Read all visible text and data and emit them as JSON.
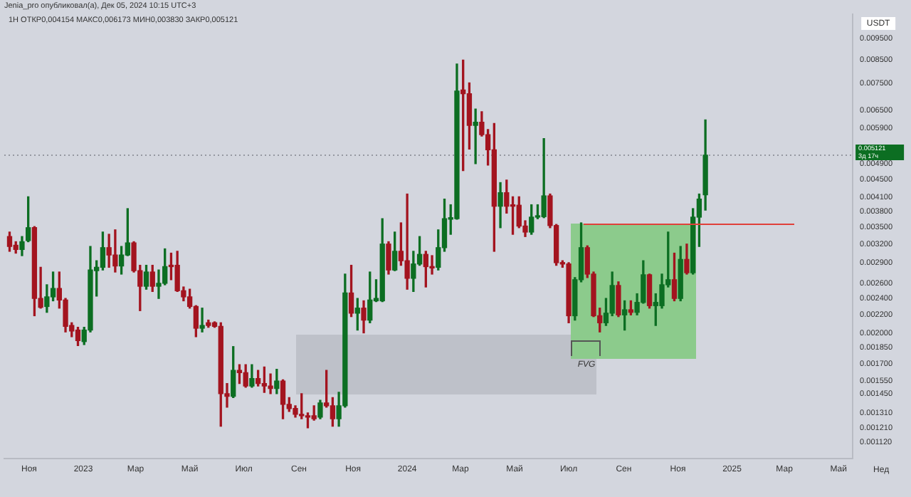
{
  "chart_data": {
    "type": "candlestick",
    "title": "Jenia_pro опубликовал(а), Дек 05, 2024 10:15 UTC+3",
    "subtitle": "1Н ОТКР0,004154 МАКС0,006173 МИН0,003830 ЗАКР0,005121",
    "ylabel": "USDT",
    "x": [
      "2022-10-10",
      "2022-10-17",
      "2022-10-24",
      "2022-10-31",
      "2022-11-07",
      "2022-11-14",
      "2022-11-21",
      "2022-11-28",
      "2022-12-05",
      "2022-12-12",
      "2022-12-19",
      "2022-12-26",
      "2023-01-02",
      "2023-01-09",
      "2023-01-16",
      "2023-01-23",
      "2023-01-30",
      "2023-02-06",
      "2023-02-13",
      "2023-02-20",
      "2023-02-27",
      "2023-03-06",
      "2023-03-13",
      "2023-03-20",
      "2023-03-27",
      "2023-04-03",
      "2023-04-10",
      "2023-04-17",
      "2023-04-24",
      "2023-05-01",
      "2023-05-08",
      "2023-05-15",
      "2023-05-22",
      "2023-05-29",
      "2023-06-05",
      "2023-06-12",
      "2023-06-19",
      "2023-06-26",
      "2023-07-03",
      "2023-07-10",
      "2023-07-17",
      "2023-07-24",
      "2023-07-31",
      "2023-08-07",
      "2023-08-14",
      "2023-08-21",
      "2023-08-28",
      "2023-09-04",
      "2023-09-11",
      "2023-09-18",
      "2023-09-25",
      "2023-10-02",
      "2023-10-09",
      "2023-10-16",
      "2023-10-23",
      "2023-10-30",
      "2023-11-06",
      "2023-11-13",
      "2023-11-20",
      "2023-11-27",
      "2023-12-04",
      "2023-12-11",
      "2023-12-18",
      "2023-12-25",
      "2024-01-01",
      "2024-01-08",
      "2024-01-15",
      "2024-01-22",
      "2024-01-29",
      "2024-02-05",
      "2024-02-12",
      "2024-02-19",
      "2024-02-26",
      "2024-03-04",
      "2024-03-11",
      "2024-03-18",
      "2024-03-25",
      "2024-04-01",
      "2024-04-08",
      "2024-04-15",
      "2024-04-22",
      "2024-04-29",
      "2024-05-06",
      "2024-05-13",
      "2024-05-20",
      "2024-05-27",
      "2024-06-03",
      "2024-06-10",
      "2024-06-17",
      "2024-06-24",
      "2024-07-01",
      "2024-07-08",
      "2024-07-15",
      "2024-07-22",
      "2024-07-29",
      "2024-08-05",
      "2024-08-12",
      "2024-08-19",
      "2024-08-26",
      "2024-09-02",
      "2024-09-09",
      "2024-09-16",
      "2024-09-23",
      "2024-09-30",
      "2024-10-07",
      "2024-10-14",
      "2024-10-21",
      "2024-10-28",
      "2024-11-04",
      "2024-11-11",
      "2024-11-18",
      "2024-11-25",
      "2024-12-02"
    ],
    "ohlc": [
      [
        0.00333,
        0.00341,
        0.00308,
        0.00316
      ],
      [
        0.00318,
        0.00324,
        0.00305,
        0.00311
      ],
      [
        0.00311,
        0.00333,
        0.00301,
        0.00324
      ],
      [
        0.00326,
        0.00411,
        0.00324,
        0.00349
      ],
      [
        0.00349,
        0.00351,
        0.00219,
        0.0024
      ],
      [
        0.0024,
        0.00283,
        0.00228,
        0.00229
      ],
      [
        0.0023,
        0.00258,
        0.00223,
        0.00242
      ],
      [
        0.00242,
        0.00276,
        0.00237,
        0.00253
      ],
      [
        0.00253,
        0.00276,
        0.00228,
        0.00238
      ],
      [
        0.00238,
        0.0024,
        0.00201,
        0.00207
      ],
      [
        0.00208,
        0.00211,
        0.00196,
        0.00202
      ],
      [
        0.00203,
        0.00206,
        0.00187,
        0.00192
      ],
      [
        0.00191,
        0.00206,
        0.00188,
        0.00203
      ],
      [
        0.00203,
        0.00316,
        0.00201,
        0.00279
      ],
      [
        0.00278,
        0.00293,
        0.00243,
        0.00283
      ],
      [
        0.00283,
        0.00341,
        0.00279,
        0.00314
      ],
      [
        0.00314,
        0.00337,
        0.00283,
        0.00302
      ],
      [
        0.00302,
        0.00345,
        0.00276,
        0.00285
      ],
      [
        0.00285,
        0.00316,
        0.00273,
        0.00302
      ],
      [
        0.00302,
        0.00386,
        0.00301,
        0.00322
      ],
      [
        0.00322,
        0.00324,
        0.00276,
        0.00278
      ],
      [
        0.00278,
        0.00286,
        0.00225,
        0.00256
      ],
      [
        0.00256,
        0.00286,
        0.00252,
        0.00276
      ],
      [
        0.00276,
        0.00286,
        0.00249,
        0.00256
      ],
      [
        0.00256,
        0.00279,
        0.0024,
        0.0026
      ],
      [
        0.0026,
        0.00312,
        0.00258,
        0.00284
      ],
      [
        0.00286,
        0.00305,
        0.00265,
        0.00284
      ],
      [
        0.00286,
        0.00308,
        0.00249,
        0.0025
      ],
      [
        0.0025,
        0.00255,
        0.00237,
        0.00242
      ],
      [
        0.00242,
        0.00252,
        0.00228,
        0.0023
      ],
      [
        0.0023,
        0.00231,
        0.00196,
        0.00205
      ],
      [
        0.00205,
        0.00228,
        0.00201,
        0.00208
      ],
      [
        0.00211,
        0.00214,
        0.00206,
        0.00208
      ],
      [
        0.00211,
        0.00212,
        0.00206,
        0.00207
      ],
      [
        0.00207,
        0.00211,
        0.00122,
        0.00145
      ],
      [
        0.00145,
        0.00153,
        0.00135,
        0.00143
      ],
      [
        0.00143,
        0.00186,
        0.00142,
        0.00164
      ],
      [
        0.00164,
        0.00169,
        0.00153,
        0.00162
      ],
      [
        0.00162,
        0.00169,
        0.0015,
        0.00151
      ],
      [
        0.00151,
        0.00169,
        0.0015,
        0.00157
      ],
      [
        0.00157,
        0.00164,
        0.00151,
        0.00153
      ],
      [
        0.00153,
        0.00167,
        0.00146,
        0.00151
      ],
      [
        0.00151,
        0.00161,
        0.00145,
        0.00149
      ],
      [
        0.00149,
        0.00165,
        0.00145,
        0.00155
      ],
      [
        0.00155,
        0.00156,
        0.00127,
        0.00137
      ],
      [
        0.00137,
        0.00142,
        0.00132,
        0.00134
      ],
      [
        0.00134,
        0.00136,
        0.00128,
        0.0013
      ],
      [
        0.0013,
        0.00145,
        0.00127,
        0.00129
      ],
      [
        0.00129,
        0.00131,
        0.00121,
        0.00128
      ],
      [
        0.00129,
        0.00136,
        0.00126,
        0.00127
      ],
      [
        0.00128,
        0.0014,
        0.00127,
        0.00138
      ],
      [
        0.00138,
        0.00164,
        0.00135,
        0.00136
      ],
      [
        0.00136,
        0.00142,
        0.00122,
        0.00127
      ],
      [
        0.00127,
        0.00146,
        0.00122,
        0.00136
      ],
      [
        0.00136,
        0.00273,
        0.00135,
        0.00247
      ],
      [
        0.00247,
        0.00286,
        0.00218,
        0.00222
      ],
      [
        0.00222,
        0.0024,
        0.00203,
        0.00228
      ],
      [
        0.00228,
        0.00237,
        0.002,
        0.00214
      ],
      [
        0.00214,
        0.00276,
        0.00211,
        0.00238
      ],
      [
        0.00237,
        0.00265,
        0.00236,
        0.0024
      ],
      [
        0.00237,
        0.00366,
        0.00236,
        0.0032
      ],
      [
        0.0032,
        0.00324,
        0.00273,
        0.00279
      ],
      [
        0.00279,
        0.00341,
        0.00278,
        0.00308
      ],
      [
        0.00308,
        0.00358,
        0.00286,
        0.00293
      ],
      [
        0.00293,
        0.00417,
        0.00252,
        0.00267
      ],
      [
        0.00267,
        0.00308,
        0.00249,
        0.00288
      ],
      [
        0.00288,
        0.00333,
        0.00286,
        0.00303
      ],
      [
        0.00303,
        0.00308,
        0.00255,
        0.00284
      ],
      [
        0.00284,
        0.00301,
        0.00273,
        0.00282
      ],
      [
        0.00283,
        0.00345,
        0.00279,
        0.00314
      ],
      [
        0.00314,
        0.00406,
        0.00308,
        0.00366
      ],
      [
        0.00365,
        0.00394,
        0.00337,
        0.00368
      ],
      [
        0.00366,
        0.0083,
        0.00365,
        0.00719
      ],
      [
        0.00723,
        0.00847,
        0.00472,
        0.00709
      ],
      [
        0.00709,
        0.00751,
        0.00529,
        0.006
      ],
      [
        0.006,
        0.00654,
        0.0049,
        0.0061
      ],
      [
        0.0061,
        0.00645,
        0.00567,
        0.00571
      ],
      [
        0.00571,
        0.00587,
        0.00486,
        0.00527
      ],
      [
        0.00527,
        0.00606,
        0.00308,
        0.00391
      ],
      [
        0.00391,
        0.00443,
        0.00349,
        0.0042
      ],
      [
        0.0042,
        0.00449,
        0.00377,
        0.00391
      ],
      [
        0.00393,
        0.00411,
        0.00337,
        0.00391
      ],
      [
        0.00393,
        0.00411,
        0.00349,
        0.00352
      ],
      [
        0.00352,
        0.00362,
        0.00333,
        0.00341
      ],
      [
        0.00341,
        0.00394,
        0.00337,
        0.00369
      ],
      [
        0.00369,
        0.00394,
        0.00366,
        0.0037
      ],
      [
        0.0037,
        0.00559,
        0.00368,
        0.00413
      ],
      [
        0.00413,
        0.00417,
        0.00349,
        0.00353
      ],
      [
        0.00353,
        0.00355,
        0.00286,
        0.0029
      ],
      [
        0.0029,
        0.00293,
        0.00283,
        0.00288
      ],
      [
        0.00288,
        0.0029,
        0.00211,
        0.00219
      ],
      [
        0.00219,
        0.00268,
        0.00214,
        0.00265
      ],
      [
        0.00265,
        0.00358,
        0.00262,
        0.00314
      ],
      [
        0.00314,
        0.00317,
        0.00268,
        0.00273
      ],
      [
        0.00273,
        0.00276,
        0.00218,
        0.00219
      ],
      [
        0.00219,
        0.00228,
        0.00201,
        0.00211
      ],
      [
        0.00211,
        0.0024,
        0.00208,
        0.00222
      ],
      [
        0.00222,
        0.00276,
        0.00219,
        0.00257
      ],
      [
        0.00257,
        0.00262,
        0.00218,
        0.0022
      ],
      [
        0.0022,
        0.00237,
        0.00203,
        0.00226
      ],
      [
        0.00226,
        0.00237,
        0.0022,
        0.00223
      ],
      [
        0.00223,
        0.00246,
        0.0022,
        0.00235
      ],
      [
        0.00235,
        0.00293,
        0.00234,
        0.00272
      ],
      [
        0.00272,
        0.00273,
        0.00228,
        0.00231
      ],
      [
        0.00231,
        0.00246,
        0.00208,
        0.00235
      ],
      [
        0.00231,
        0.00273,
        0.00228,
        0.00258
      ],
      [
        0.00258,
        0.00341,
        0.00255,
        0.00265
      ],
      [
        0.00265,
        0.00305,
        0.00237,
        0.0024
      ],
      [
        0.0024,
        0.00316,
        0.00237,
        0.00295
      ],
      [
        0.00295,
        0.0032,
        0.00273,
        0.00275
      ],
      [
        0.00275,
        0.00386,
        0.00273,
        0.00369
      ],
      [
        0.00369,
        0.00417,
        0.00316,
        0.00406
      ],
      [
        0.004154,
        0.006173,
        0.00383,
        0.005121
      ]
    ],
    "colors": [
      "#a3141f",
      "#a3141f",
      "#0c6e22",
      "#0c6e22",
      "#a3141f",
      "#a3141f",
      "#0c6e22",
      "#0c6e22",
      "#a3141f",
      "#a3141f",
      "#a3141f",
      "#a3141f",
      "#0c6e22",
      "#0c6e22",
      "#0c6e22",
      "#0c6e22",
      "#a3141f",
      "#a3141f",
      "#0c6e22",
      "#0c6e22",
      "#a3141f",
      "#a3141f",
      "#0c6e22",
      "#a3141f",
      "#0c6e22",
      "#0c6e22",
      "#a3141f",
      "#a3141f",
      "#a3141f",
      "#a3141f",
      "#a3141f",
      "#0c6e22",
      "#a3141f",
      "#a3141f",
      "#a3141f",
      "#a3141f",
      "#0c6e22",
      "#a3141f",
      "#a3141f",
      "#0c6e22",
      "#a3141f",
      "#a3141f",
      "#a3141f",
      "#0c6e22",
      "#a3141f",
      "#a3141f",
      "#a3141f",
      "#a3141f",
      "#a3141f",
      "#a3141f",
      "#0c6e22",
      "#a3141f",
      "#a3141f",
      "#0c6e22",
      "#0c6e22",
      "#a3141f",
      "#0c6e22",
      "#a3141f",
      "#0c6e22",
      "#0c6e22",
      "#0c6e22",
      "#a3141f",
      "#0c6e22",
      "#a3141f",
      "#a3141f",
      "#0c6e22",
      "#0c6e22",
      "#a3141f",
      "#a3141f",
      "#0c6e22",
      "#0c6e22",
      "#0c6e22",
      "#0c6e22",
      "#a3141f",
      "#a3141f",
      "#0c6e22",
      "#a3141f",
      "#a3141f",
      "#a3141f",
      "#0c6e22",
      "#a3141f",
      "#a3141f",
      "#a3141f",
      "#a3141f",
      "#0c6e22",
      "#0c6e22",
      "#0c6e22",
      "#a3141f",
      "#a3141f",
      "#a3141f",
      "#a3141f",
      "#0c6e22",
      "#0c6e22",
      "#a3141f",
      "#a3141f",
      "#a3141f",
      "#0c6e22",
      "#0c6e22",
      "#a3141f",
      "#0c6e22",
      "#a3141f",
      "#0c6e22",
      "#0c6e22",
      "#a3141f",
      "#0c6e22",
      "#0c6e22",
      "#0c6e22",
      "#a3141f",
      "#0c6e22",
      "#a3141f",
      "#0c6e22",
      "#0c6e22",
      "#0c6e22"
    ],
    "log": true,
    "grid": false,
    "xlim": [
      "2022-10-04",
      "2025-05-17"
    ],
    "xticks": [
      {
        "value": "2022-11-01",
        "label": "Ноя"
      },
      {
        "value": "2023-01-01",
        "label": "2023"
      },
      {
        "value": "2023-03-01",
        "label": "Мар"
      },
      {
        "value": "2023-05-01",
        "label": "Май"
      },
      {
        "value": "2023-07-01",
        "label": "Июл"
      },
      {
        "value": "2023-09-01",
        "label": "Сен"
      },
      {
        "value": "2023-11-01",
        "label": "Ноя"
      },
      {
        "value": "2024-01-01",
        "label": "2024"
      },
      {
        "value": "2024-03-01",
        "label": "Мар"
      },
      {
        "value": "2024-05-01",
        "label": "Май"
      },
      {
        "value": "2024-07-01",
        "label": "Июл"
      },
      {
        "value": "2024-09-01",
        "label": "Сен"
      },
      {
        "value": "2024-11-01",
        "label": "Ноя"
      },
      {
        "value": "2025-01-01",
        "label": "2025"
      },
      {
        "value": "2025-03-01",
        "label": "Мар"
      },
      {
        "value": "2025-05-01",
        "label": "Май"
      }
    ],
    "ylim": [
      0.00103,
      0.0108
    ],
    "yticks": [
      {
        "value": 0.0095,
        "label": "0.009500"
      },
      {
        "value": 0.0085,
        "label": "0.008500"
      },
      {
        "value": 0.0075,
        "label": "0.007500"
      },
      {
        "value": 0.0065,
        "label": "0.006500"
      },
      {
        "value": 0.0059,
        "label": "0.005900"
      },
      {
        "value": 0.0049,
        "label": "0.004900"
      },
      {
        "value": 0.0045,
        "label": "0.004500"
      },
      {
        "value": 0.0041,
        "label": "0.004100"
      },
      {
        "value": 0.0038,
        "label": "0.003800"
      },
      {
        "value": 0.0035,
        "label": "0.003500"
      },
      {
        "value": 0.0032,
        "label": "0.003200"
      },
      {
        "value": 0.0029,
        "label": "0.002900"
      },
      {
        "value": 0.0026,
        "label": "0.002600"
      },
      {
        "value": 0.0024,
        "label": "0.002400"
      },
      {
        "value": 0.0022,
        "label": "0.002200"
      },
      {
        "value": 0.002,
        "label": "0.002000"
      },
      {
        "value": 0.00185,
        "label": "0.001850"
      },
      {
        "value": 0.0017,
        "label": "0.001700"
      },
      {
        "value": 0.00155,
        "label": "0.001550"
      },
      {
        "value": 0.00145,
        "label": "0.001450"
      },
      {
        "value": 0.00131,
        "label": "0.001310"
      },
      {
        "value": 0.00121,
        "label": "0.001210"
      },
      {
        "value": 0.00112,
        "label": "0.001120"
      }
    ],
    "ref_lines": [
      {
        "axis": "y",
        "value": 0.005121,
        "label": "0.005121",
        "color": "#9598a1",
        "line_style": "dotted"
      }
    ],
    "annotations": [
      "3д 17ч",
      "Нед",
      "FVG"
    ]
  }
}
